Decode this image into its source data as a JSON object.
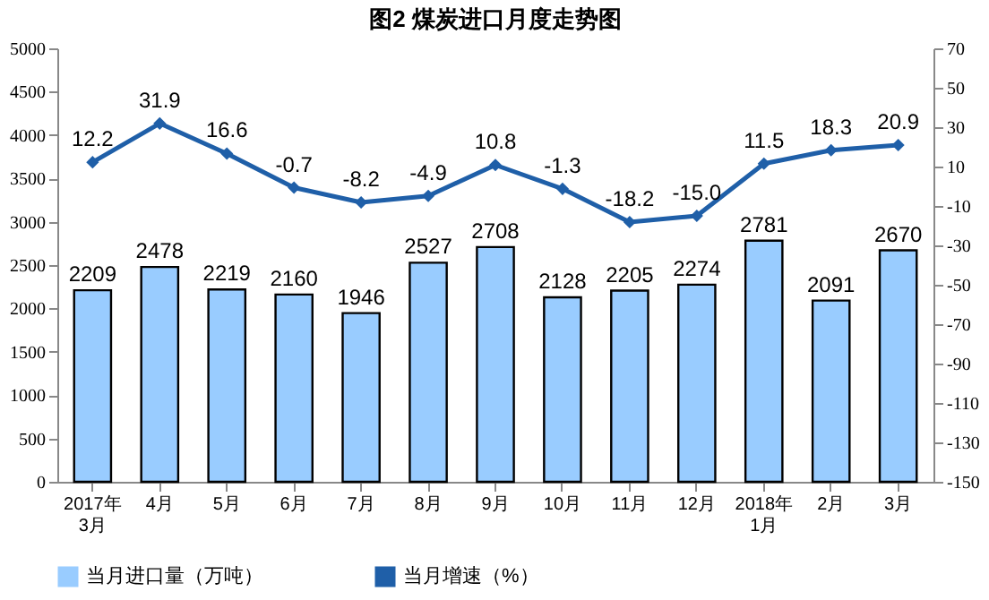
{
  "chart_data": {
    "type": "bar",
    "title": "图2  煤炭进口月度走势图",
    "categories": [
      "2017年\n3月",
      "4月",
      "5月",
      "6月",
      "7月",
      "8月",
      "9月",
      "10月",
      "11月",
      "12月",
      "2018年\n1月",
      "2月",
      "3月"
    ],
    "series": [
      {
        "name": "当月进口量（万吨）",
        "color": "#99ccff",
        "values": [
          2209,
          2478,
          2219,
          2160,
          1946,
          2527,
          2708,
          2128,
          2205,
          2274,
          2781,
          2091,
          2670
        ]
      },
      {
        "name": "当月增速（%）",
        "type": "line",
        "axis": "y2",
        "color": "#1f5fa8",
        "values": [
          12.2,
          31.9,
          16.6,
          -0.7,
          -8.2,
          -4.9,
          10.8,
          -1.3,
          -18.2,
          -15.0,
          11.5,
          18.3,
          20.9
        ],
        "value_labels": [
          "12.2",
          "31.9",
          "16.6",
          "-0.7",
          "-8.2",
          "-4.9",
          "10.8",
          "-1.3",
          "-18.2",
          "-15.0",
          "11.5",
          "18.3",
          "20.9"
        ]
      }
    ],
    "ylim": [
      0,
      5000
    ],
    "yticks": [
      0,
      500,
      1000,
      1500,
      2000,
      2500,
      3000,
      3500,
      4000,
      4500,
      5000
    ],
    "y2lim": [
      -150,
      70
    ],
    "y2ticks": [
      -150,
      -130,
      -110,
      -90,
      -70,
      -50,
      -30,
      -10,
      10,
      30,
      50,
      70
    ],
    "data_labels": true,
    "grid": false,
    "legend": "bottom",
    "marker": "diamond",
    "line_style": "solid"
  }
}
